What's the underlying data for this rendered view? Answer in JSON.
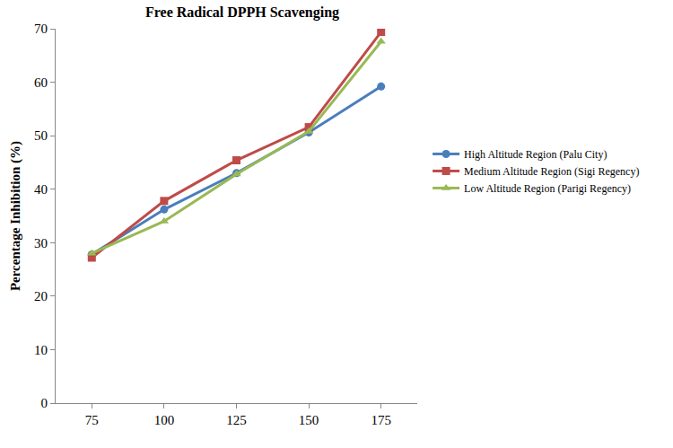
{
  "chart_data": {
    "type": "line",
    "title": "Free Radical DPPH Scavenging",
    "y_label": "Percentage Inhibition (%)",
    "categories": [
      75,
      100,
      125,
      150,
      175
    ],
    "series": [
      {
        "name": "High Altitude Region (Palu City)",
        "color": "#4a7ebb",
        "marker": "circle",
        "values": [
          27.8,
          36.2,
          43.0,
          50.6,
          59.2
        ]
      },
      {
        "name": "Medium Altitude Region (Sigi Regency)",
        "color": "#be4b48",
        "marker": "square",
        "values": [
          27.2,
          37.8,
          45.4,
          51.6,
          69.4
        ]
      },
      {
        "name": "Low Altitude Region (Parigi Regency)",
        "color": "#98b954",
        "marker": "triangle-up",
        "values": [
          28.0,
          34.0,
          42.8,
          50.8,
          67.6
        ]
      }
    ],
    "ylim": [
      0,
      70
    ],
    "yticks": [
      0,
      10,
      20,
      30,
      40,
      50,
      60,
      70
    ],
    "grid": false,
    "legend": "right"
  }
}
